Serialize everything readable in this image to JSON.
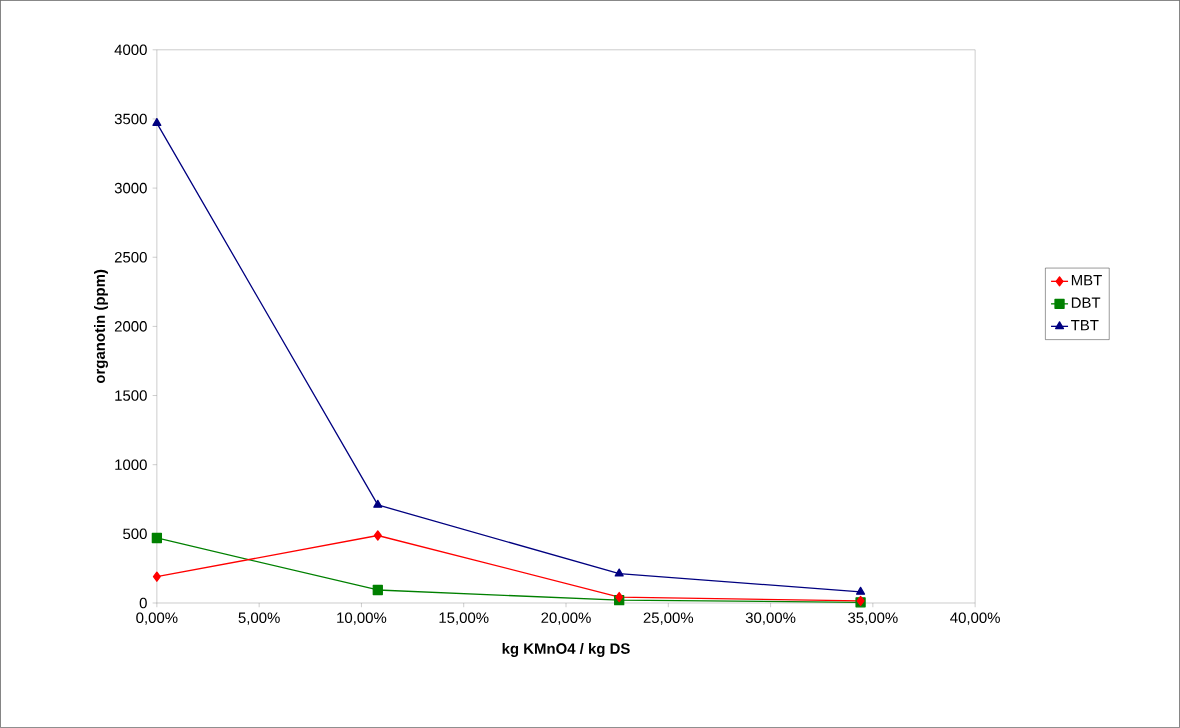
{
  "chart_data": {
    "type": "line",
    "xlabel": "kg KMnO4 / kg DS",
    "ylabel": "organotin (ppm)",
    "x": [
      0,
      10.8,
      22.6,
      34.4
    ],
    "xlim": [
      0,
      40
    ],
    "xticks": [
      {
        "value": 0,
        "label": "0,00%"
      },
      {
        "value": 5,
        "label": "5,00%"
      },
      {
        "value": 10,
        "label": "10,00%"
      },
      {
        "value": 15,
        "label": "15,00%"
      },
      {
        "value": 20,
        "label": "20,00%"
      },
      {
        "value": 25,
        "label": "25,00%"
      },
      {
        "value": 30,
        "label": "30,00%"
      },
      {
        "value": 35,
        "label": "35,00%"
      },
      {
        "value": 40,
        "label": "40,00%"
      }
    ],
    "ylim": [
      0,
      4000
    ],
    "yticks": [
      0,
      500,
      1000,
      1500,
      2000,
      2500,
      3000,
      3500,
      4000
    ],
    "series": [
      {
        "name": "MBT",
        "color": "#ff0000",
        "marker": "diamond",
        "values": [
          190,
          488,
          43,
          15
        ]
      },
      {
        "name": "DBT",
        "color": "#008000",
        "marker": "square",
        "values": [
          470,
          94,
          20,
          5
        ]
      },
      {
        "name": "TBT",
        "color": "#000080",
        "marker": "triangle",
        "values": [
          3470,
          709,
          212,
          80
        ]
      }
    ],
    "legend": "right",
    "grid": false,
    "line_style": "solid"
  }
}
